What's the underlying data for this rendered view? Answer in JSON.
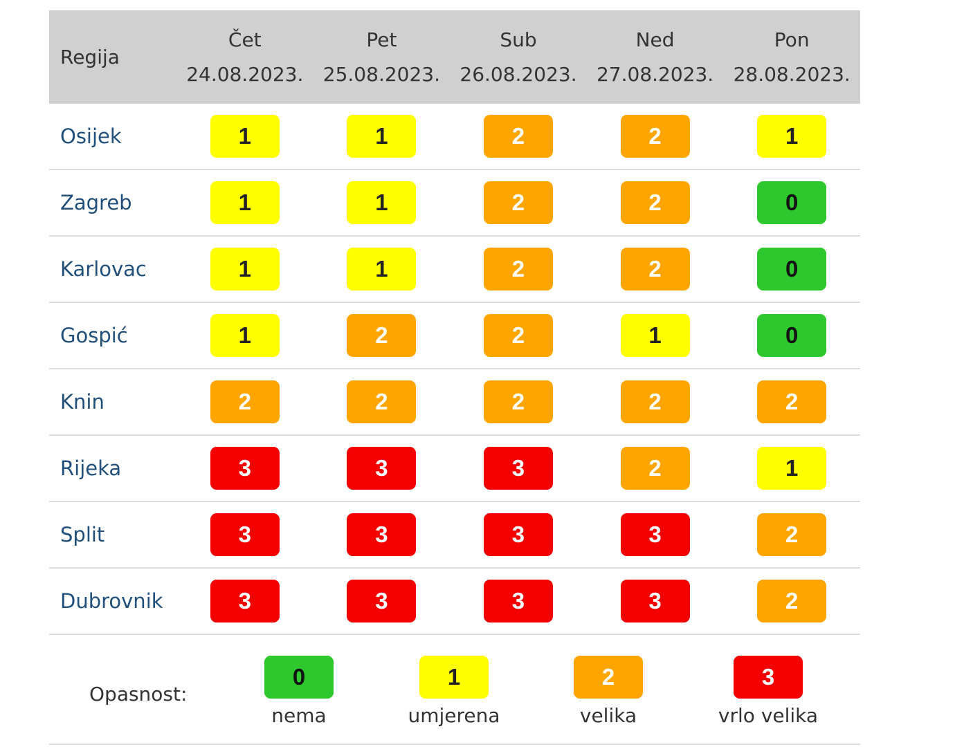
{
  "header": {
    "region_label": "Regija",
    "days": [
      {
        "day": "Čet",
        "date": "24.08.2023."
      },
      {
        "day": "Pet",
        "date": "25.08.2023."
      },
      {
        "day": "Sub",
        "date": "26.08.2023."
      },
      {
        "day": "Ned",
        "date": "27.08.2023."
      },
      {
        "day": "Pon",
        "date": "28.08.2023."
      }
    ]
  },
  "rows": [
    {
      "region": "Osijek",
      "levels": [
        "1",
        "1",
        "2",
        "2",
        "1"
      ]
    },
    {
      "region": "Zagreb",
      "levels": [
        "1",
        "1",
        "2",
        "2",
        "0"
      ]
    },
    {
      "region": "Karlovac",
      "levels": [
        "1",
        "1",
        "2",
        "2",
        "0"
      ]
    },
    {
      "region": "Gospić",
      "levels": [
        "1",
        "2",
        "2",
        "1",
        "0"
      ]
    },
    {
      "region": "Knin",
      "levels": [
        "2",
        "2",
        "2",
        "2",
        "2"
      ]
    },
    {
      "region": "Rijeka",
      "levels": [
        "3",
        "3",
        "3",
        "2",
        "1"
      ]
    },
    {
      "region": "Split",
      "levels": [
        "3",
        "3",
        "3",
        "3",
        "2"
      ]
    },
    {
      "region": "Dubrovnik",
      "levels": [
        "3",
        "3",
        "3",
        "3",
        "2"
      ]
    }
  ],
  "legend": {
    "label": "Opasnost:",
    "items": [
      {
        "level": "0",
        "caption": "nema"
      },
      {
        "level": "1",
        "caption": "umjerena"
      },
      {
        "level": "2",
        "caption": "velika"
      },
      {
        "level": "3",
        "caption": "vrlo velika"
      }
    ]
  },
  "colors": {
    "0": {
      "bg": "#2ec82e",
      "fg": "#111111"
    },
    "1": {
      "bg": "#ffff00",
      "fg": "#222222"
    },
    "2": {
      "bg": "#ffa500",
      "fg": "#ffffff"
    },
    "3": {
      "bg": "#f50000",
      "fg": "#ffffff"
    }
  }
}
